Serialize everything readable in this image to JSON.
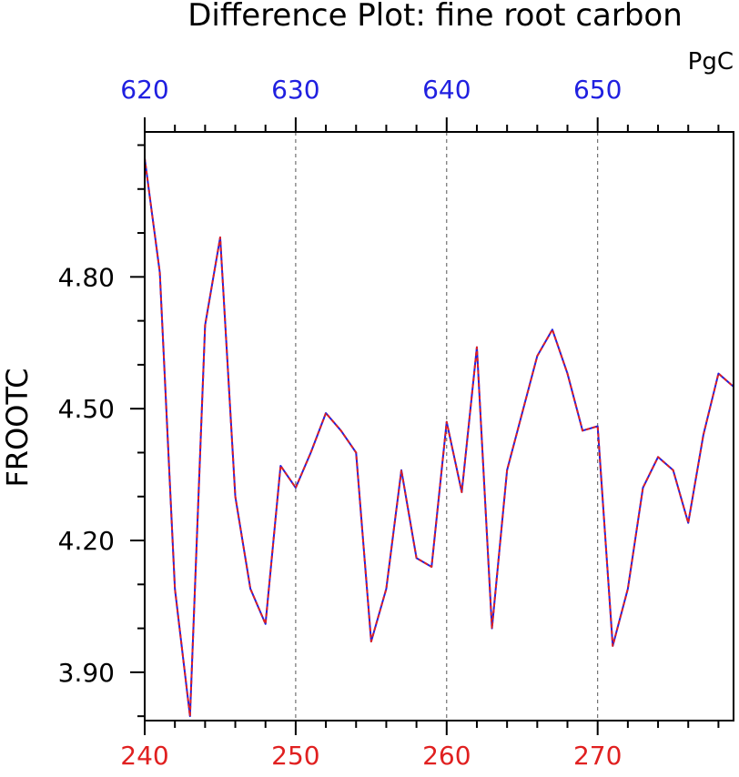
{
  "chart_data": {
    "type": "line",
    "title": "Difference Plot: fine root carbon",
    "units": "PgC",
    "ylabel": "FROOTC",
    "xlim_bottom": [
      240,
      279
    ],
    "xlim_top": [
      620,
      659
    ],
    "ylim": [
      3.79,
      5.13
    ],
    "x_ticks_bottom": [
      240,
      250,
      260,
      270
    ],
    "x_tick_labels_bottom": [
      "240",
      "250",
      "260",
      "270"
    ],
    "x_ticks_top": [
      620,
      630,
      640,
      650
    ],
    "x_tick_labels_top": [
      "620",
      "630",
      "640",
      "650"
    ],
    "y_ticks": [
      3.9,
      4.2,
      4.5,
      4.8
    ],
    "y_tick_labels": [
      "3.90",
      "4.20",
      "4.50",
      "4.80"
    ],
    "grid_x": true,
    "grid_y": false,
    "colors": {
      "bottom_axis": "#e02020",
      "top_axis": "#2020e0",
      "series_a": "#2020e0",
      "series_b": "#e02020"
    },
    "x": [
      240,
      241,
      242,
      243,
      244,
      245,
      246,
      247,
      248,
      249,
      250,
      251,
      252,
      253,
      254,
      255,
      256,
      257,
      258,
      259,
      260,
      261,
      262,
      263,
      264,
      265,
      266,
      267,
      268,
      269,
      270,
      271,
      272,
      273,
      274,
      275,
      276,
      277,
      278,
      279
    ],
    "series": [
      {
        "values": [
          5.07,
          4.81,
          4.09,
          3.8,
          4.69,
          4.89,
          4.3,
          4.09,
          4.01,
          4.37,
          4.32,
          4.4,
          4.49,
          4.45,
          4.4,
          3.97,
          4.09,
          4.36,
          4.16,
          4.14,
          4.47,
          4.31,
          4.64,
          4.0,
          4.36,
          4.49,
          4.62,
          4.68,
          4.58,
          4.45,
          4.46,
          3.96,
          4.09,
          4.32,
          4.39,
          4.36,
          4.24,
          4.44,
          4.58,
          4.55
        ]
      },
      {
        "values": [
          5.07,
          4.81,
          4.09,
          3.8,
          4.69,
          4.89,
          4.3,
          4.09,
          4.01,
          4.37,
          4.32,
          4.4,
          4.49,
          4.45,
          4.4,
          3.97,
          4.09,
          4.36,
          4.16,
          4.14,
          4.47,
          4.31,
          4.64,
          4.0,
          4.36,
          4.49,
          4.62,
          4.68,
          4.58,
          4.45,
          4.46,
          3.96,
          4.09,
          4.32,
          4.39,
          4.36,
          4.24,
          4.44,
          4.58,
          4.55
        ]
      }
    ]
  }
}
